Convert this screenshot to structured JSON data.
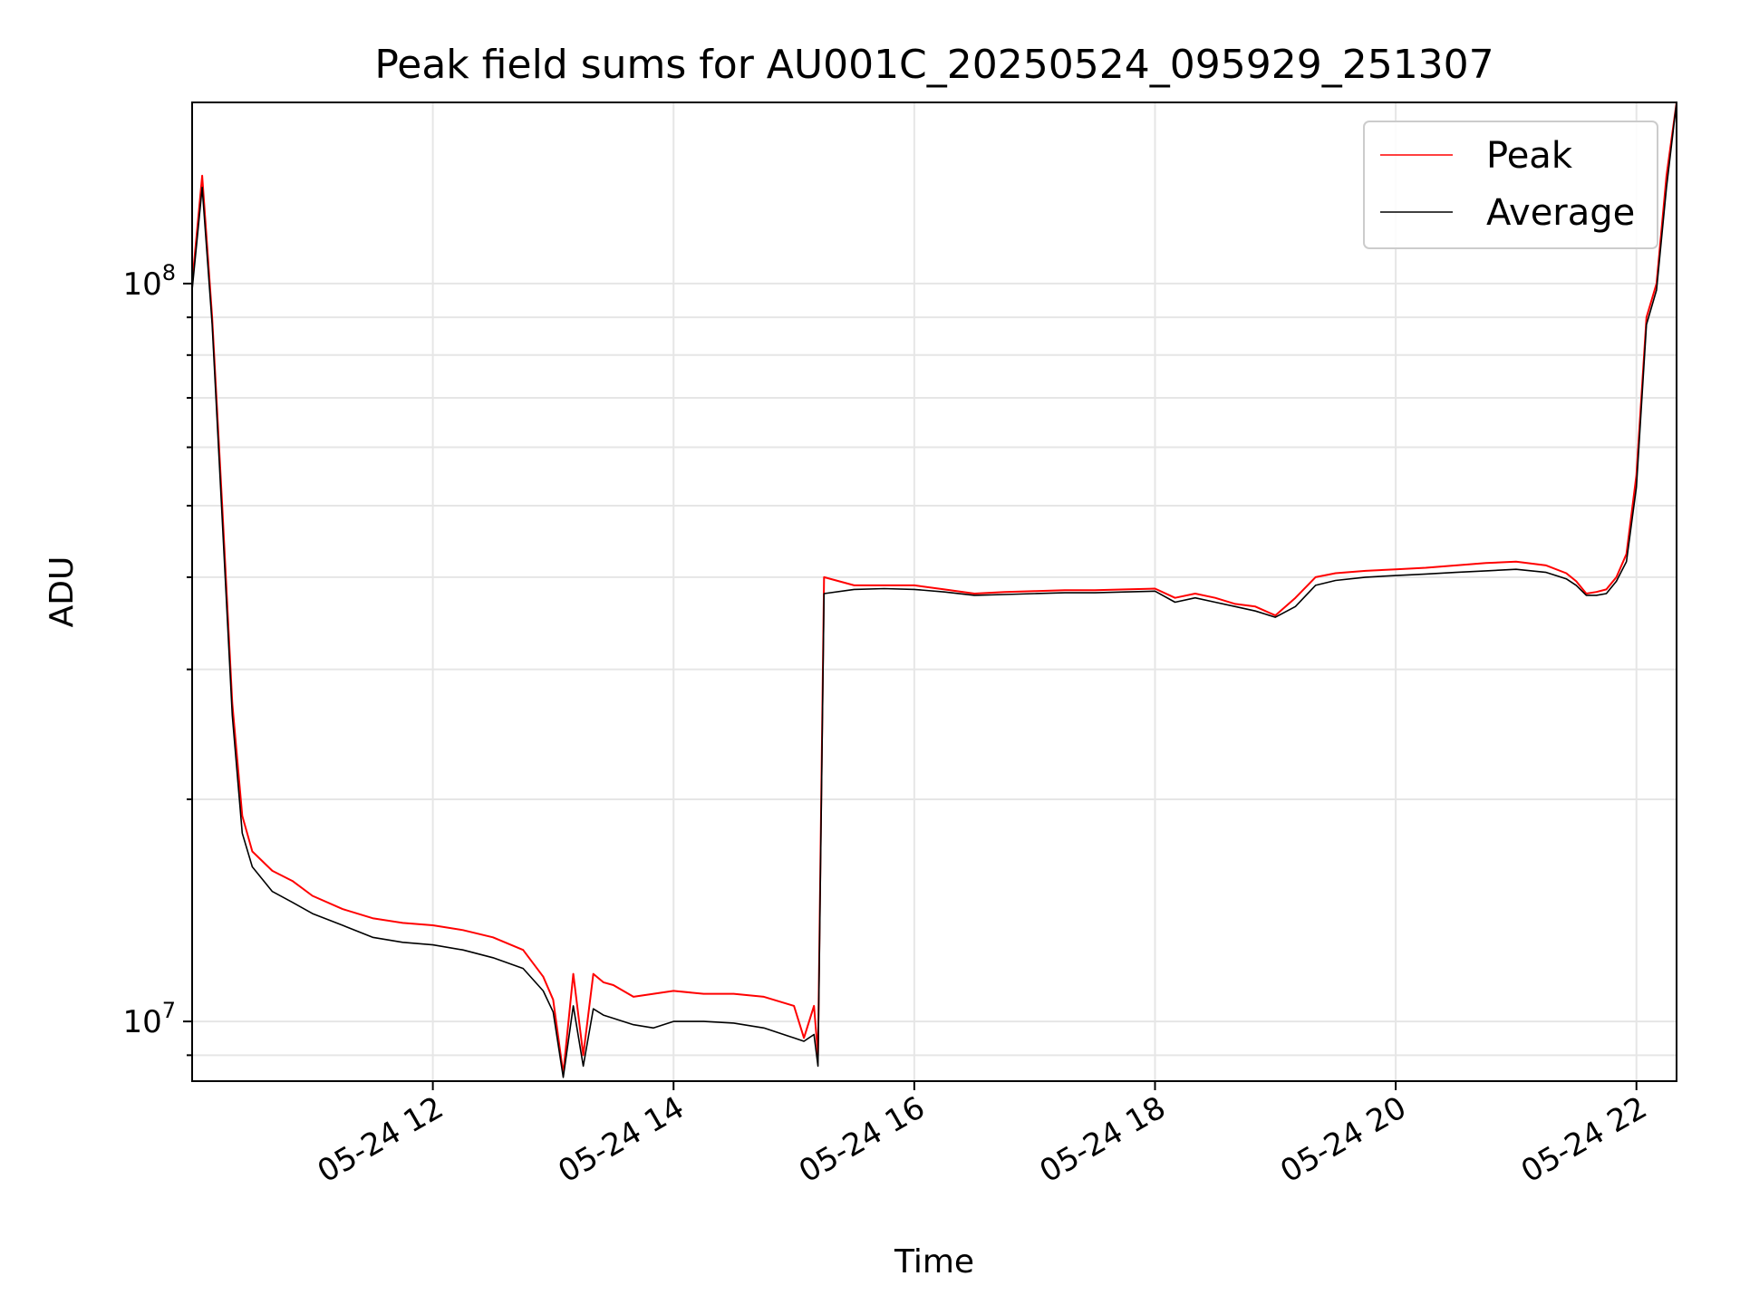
{
  "chart_data": {
    "type": "line",
    "title": "Peak field sums for AU001C_20250524_095929_251307",
    "xlabel": "Time",
    "ylabel": "ADU",
    "yscale": "log",
    "xlim": [
      "05-24 10:00",
      "05-24 22:20"
    ],
    "ylim": [
      8300000,
      176000000
    ],
    "x_ticks": [
      "05-24 12",
      "05-24 14",
      "05-24 16",
      "05-24 18",
      "05-24 20",
      "05-24 22"
    ],
    "y_ticks": [
      {
        "base": "10",
        "exp": "7",
        "value": 10000000
      },
      {
        "base": "10",
        "exp": "8",
        "value": 100000000
      }
    ],
    "grid": true,
    "legend": "top-right",
    "series": [
      {
        "name": "Peak",
        "color": "#ff0000",
        "x": [
          "05-24 10:00",
          "05-24 10:05",
          "05-24 10:10",
          "05-24 10:15",
          "05-24 10:20",
          "05-24 10:25",
          "05-24 10:30",
          "05-24 10:40",
          "05-24 10:50",
          "05-24 11:00",
          "05-24 11:15",
          "05-24 11:30",
          "05-24 11:45",
          "05-24 12:00",
          "05-24 12:15",
          "05-24 12:30",
          "05-24 12:45",
          "05-24 12:55",
          "05-24 13:00",
          "05-24 13:05",
          "05-24 13:10",
          "05-24 13:15",
          "05-24 13:20",
          "05-24 13:25",
          "05-24 13:30",
          "05-24 13:40",
          "05-24 13:50",
          "05-24 14:00",
          "05-24 14:15",
          "05-24 14:30",
          "05-24 14:45",
          "05-24 15:00",
          "05-24 15:05",
          "05-24 15:10",
          "05-24 15:12",
          "05-24 15:15",
          "05-24 15:30",
          "05-24 15:45",
          "05-24 16:00",
          "05-24 16:15",
          "05-24 16:30",
          "05-24 16:45",
          "05-24 17:00",
          "05-24 17:15",
          "05-24 17:30",
          "05-24 17:45",
          "05-24 18:00",
          "05-24 18:10",
          "05-24 18:20",
          "05-24 18:30",
          "05-24 18:40",
          "05-24 18:50",
          "05-24 19:00",
          "05-24 19:10",
          "05-24 19:20",
          "05-24 19:30",
          "05-24 19:45",
          "05-24 20:00",
          "05-24 20:15",
          "05-24 20:30",
          "05-24 20:45",
          "05-24 21:00",
          "05-24 21:15",
          "05-24 21:25",
          "05-24 21:30",
          "05-24 21:35",
          "05-24 21:40",
          "05-24 21:45",
          "05-24 21:50",
          "05-24 21:55",
          "05-24 22:00",
          "05-24 22:05",
          "05-24 22:10",
          "05-24 22:15",
          "05-24 22:20"
        ],
        "values": [
          100000000,
          140000000,
          90000000,
          50000000,
          27000000,
          19000000,
          17000000,
          16000000,
          15500000,
          14800000,
          14200000,
          13800000,
          13600000,
          13500000,
          13300000,
          13000000,
          12500000,
          11500000,
          10700000,
          8500000,
          11600000,
          9000000,
          11600000,
          11300000,
          11200000,
          10800000,
          10900000,
          11000000,
          10900000,
          10900000,
          10800000,
          10500000,
          9500000,
          10500000,
          9000000,
          40000000,
          39000000,
          39000000,
          39000000,
          38500000,
          38000000,
          38200000,
          38300000,
          38400000,
          38400000,
          38500000,
          38600000,
          37500000,
          38000000,
          37500000,
          36800000,
          36500000,
          35500000,
          37500000,
          40000000,
          40500000,
          40800000,
          41000000,
          41200000,
          41500000,
          41800000,
          42000000,
          41500000,
          40500000,
          39500000,
          38000000,
          38200000,
          38500000,
          40000000,
          43000000,
          55000000,
          90000000,
          100000000,
          140000000,
          176000000
        ]
      },
      {
        "name": "Average",
        "color": "#000000",
        "x": [
          "05-24 10:00",
          "05-24 10:05",
          "05-24 10:10",
          "05-24 10:15",
          "05-24 10:20",
          "05-24 10:25",
          "05-24 10:30",
          "05-24 10:40",
          "05-24 10:50",
          "05-24 11:00",
          "05-24 11:15",
          "05-24 11:30",
          "05-24 11:45",
          "05-24 12:00",
          "05-24 12:15",
          "05-24 12:30",
          "05-24 12:45",
          "05-24 12:55",
          "05-24 13:00",
          "05-24 13:05",
          "05-24 13:10",
          "05-24 13:15",
          "05-24 13:20",
          "05-24 13:25",
          "05-24 13:30",
          "05-24 13:40",
          "05-24 13:50",
          "05-24 14:00",
          "05-24 14:15",
          "05-24 14:30",
          "05-24 14:45",
          "05-24 15:00",
          "05-24 15:05",
          "05-24 15:10",
          "05-24 15:12",
          "05-24 15:15",
          "05-24 15:30",
          "05-24 15:45",
          "05-24 16:00",
          "05-24 16:15",
          "05-24 16:30",
          "05-24 16:45",
          "05-24 17:00",
          "05-24 17:15",
          "05-24 17:30",
          "05-24 17:45",
          "05-24 18:00",
          "05-24 18:10",
          "05-24 18:20",
          "05-24 18:30",
          "05-24 18:40",
          "05-24 18:50",
          "05-24 19:00",
          "05-24 19:10",
          "05-24 19:20",
          "05-24 19:30",
          "05-24 19:45",
          "05-24 20:00",
          "05-24 20:15",
          "05-24 20:30",
          "05-24 20:45",
          "05-24 21:00",
          "05-24 21:15",
          "05-24 21:25",
          "05-24 21:30",
          "05-24 21:35",
          "05-24 21:40",
          "05-24 21:45",
          "05-24 21:50",
          "05-24 21:55",
          "05-24 22:00",
          "05-24 22:05",
          "05-24 22:10",
          "05-24 22:15",
          "05-24 22:20"
        ],
        "values": [
          98000000,
          135000000,
          88000000,
          48000000,
          26000000,
          18000000,
          16200000,
          15000000,
          14500000,
          14000000,
          13500000,
          13000000,
          12800000,
          12700000,
          12500000,
          12200000,
          11800000,
          11000000,
          10300000,
          8400000,
          10500000,
          8700000,
          10400000,
          10200000,
          10100000,
          9900000,
          9800000,
          10000000,
          10000000,
          9950000,
          9800000,
          9500000,
          9400000,
          9600000,
          8700000,
          38000000,
          38500000,
          38600000,
          38500000,
          38200000,
          37800000,
          37900000,
          38000000,
          38100000,
          38100000,
          38200000,
          38300000,
          37000000,
          37500000,
          37000000,
          36500000,
          36000000,
          35300000,
          36500000,
          39000000,
          39600000,
          40000000,
          40200000,
          40400000,
          40600000,
          40800000,
          41000000,
          40600000,
          39800000,
          39000000,
          37800000,
          37800000,
          38000000,
          39500000,
          42000000,
          53000000,
          88000000,
          98000000,
          135000000,
          176000000
        ]
      }
    ]
  }
}
